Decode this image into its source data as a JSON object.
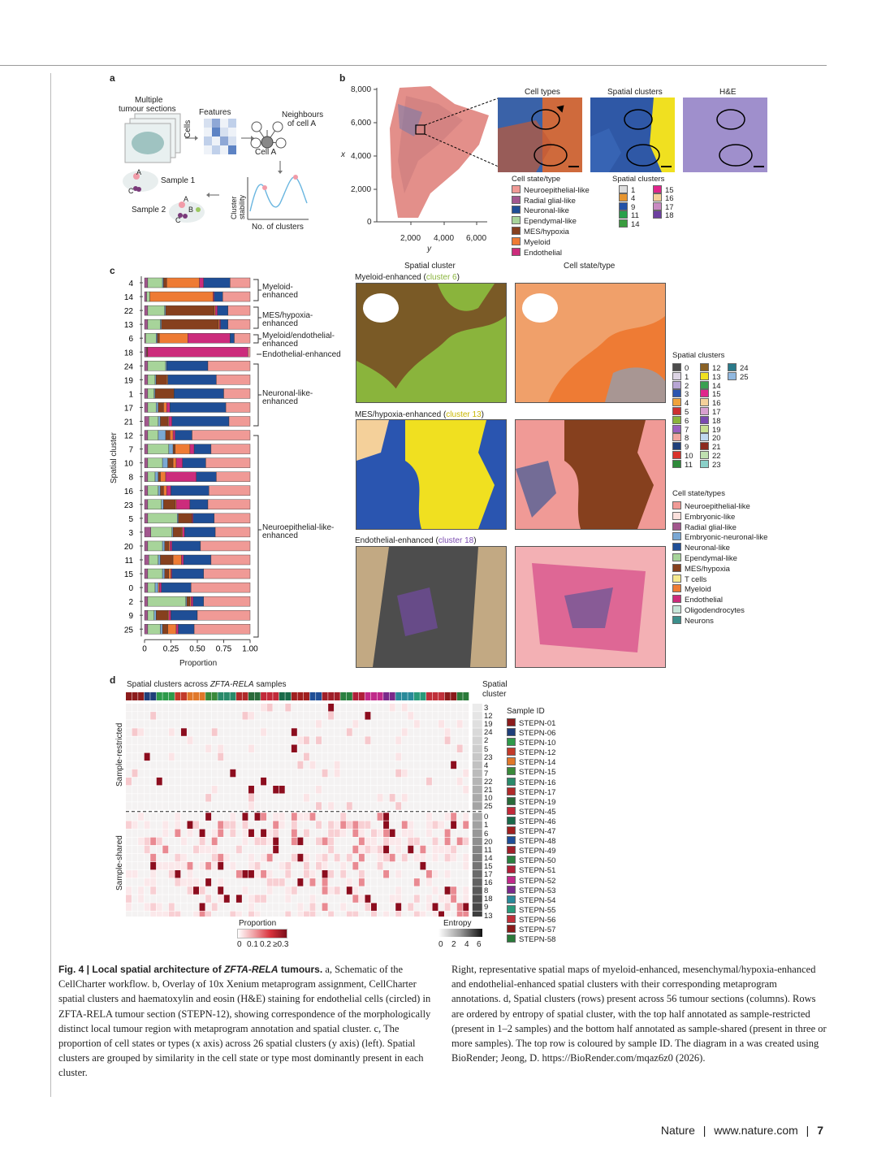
{
  "panel_labels": {
    "a": "a",
    "b": "b",
    "c": "c",
    "d": "d"
  },
  "panel_a": {
    "multiple": "Multiple",
    "tumour_sections": "tumour sections",
    "features": "Features",
    "cells": "Cells",
    "neighbours1": "Neighbours",
    "neighbours2": "of cell A",
    "cell_a": "Cell A",
    "sample1": "Sample 1",
    "sample2": "Sample 2",
    "cluster_stability": "Cluster stability",
    "no_clusters": "No. of clusters",
    "pt_a": "A",
    "pt_b": "B",
    "pt_c": "C"
  },
  "panel_b": {
    "x_label": "x",
    "y_label": "y",
    "y_ticks": [
      "8,000",
      "6,000",
      "4,000",
      "2,000",
      "0"
    ],
    "x_ticks": [
      "2,000",
      "4,000",
      "6,000"
    ],
    "inset_titles": [
      "Cell types",
      "Spatial clusters",
      "H&E"
    ],
    "cell_state_title": "Cell state/type",
    "cell_states": [
      "Neuroepithelial-like",
      "Radial glial-like",
      "Neuronal-like",
      "Ependymal-like",
      "MES/hypoxia",
      "Myeloid",
      "Endothelial"
    ],
    "cell_state_colors": [
      "#f09a96",
      "#a2578e",
      "#1f4e96",
      "#a7d49a",
      "#86401e",
      "#ee7b34",
      "#cc2c7c"
    ],
    "spatial_title": "Spatial clusters",
    "spatial_items": [
      "1",
      "4",
      "9",
      "11",
      "14",
      "15",
      "16",
      "17",
      "18"
    ],
    "spatial_colors": [
      "#dddddd",
      "#e7952f",
      "#2352a8",
      "#2aa04a",
      "#3a9d3f",
      "#e0258c",
      "#f4d09a",
      "#c98ac2",
      "#6d3fa0"
    ]
  },
  "panel_c": {
    "y_axis_label": "Spatial cluster",
    "x_axis_label": "Proportion",
    "x_ticks": [
      "0",
      "0.25",
      "0.50",
      "0.75",
      "1.00"
    ],
    "groups": [
      {
        "label1": "Myeloid-",
        "label2": "enhanced"
      },
      {
        "label1": "MES/hypoxia-",
        "label2": "enhanced"
      },
      {
        "label1": "Myeloid/endothelial-",
        "label2": "enhanced"
      },
      {
        "label1": "Endothelial-enhanced",
        "label2": ""
      },
      {
        "label1": "Neuronal-like-",
        "label2": "enhanced"
      },
      {
        "label1": "Neuroepithelial-like-",
        "label2": "enhanced"
      }
    ],
    "map_headers": [
      "Spatial cluster",
      "Cell state/type"
    ],
    "map_titles": [
      {
        "prefix": "Myeloid-enhanced (",
        "cluster": "cluster 6",
        "suffix": ")",
        "color": "#8ab43c"
      },
      {
        "prefix": "MES/hypoxia-enhanced (",
        "cluster": "cluster 13",
        "suffix": ")",
        "color": "#c9b600"
      },
      {
        "prefix": "Endothelial-enhanced (",
        "cluster": "cluster 18",
        "suffix": ")",
        "color": "#7a4bb0"
      }
    ],
    "spatial_legend_title": "Spatial clusters",
    "spatial_legend": [
      {
        "n": "0",
        "c": "#4d4d4d"
      },
      {
        "n": "1",
        "c": "#dcd4e4"
      },
      {
        "n": "2",
        "c": "#b8a6d4"
      },
      {
        "n": "3",
        "c": "#2a55b0"
      },
      {
        "n": "4",
        "c": "#f0a23a"
      },
      {
        "n": "5",
        "c": "#cc3030"
      },
      {
        "n": "6",
        "c": "#8ab43c"
      },
      {
        "n": "7",
        "c": "#9a5fc0"
      },
      {
        "n": "8",
        "c": "#f0a6a0"
      },
      {
        "n": "9",
        "c": "#1f3f7a"
      },
      {
        "n": "10",
        "c": "#d8322a"
      },
      {
        "n": "11",
        "c": "#2e8a3a"
      },
      {
        "n": "12",
        "c": "#8a6226"
      },
      {
        "n": "13",
        "c": "#f0e020"
      },
      {
        "n": "14",
        "c": "#3aa050"
      },
      {
        "n": "15",
        "c": "#e0258c"
      },
      {
        "n": "16",
        "c": "#f4d09a"
      },
      {
        "n": "17",
        "c": "#d8a0d0"
      },
      {
        "n": "18",
        "c": "#7a4bb0"
      },
      {
        "n": "19",
        "c": "#c8e090"
      },
      {
        "n": "20",
        "c": "#c0d8f0"
      },
      {
        "n": "21",
        "c": "#8c2a20"
      },
      {
        "n": "22",
        "c": "#bfe0b0"
      },
      {
        "n": "23",
        "c": "#8ad0c8"
      },
      {
        "n": "24",
        "c": "#2a7a8a"
      },
      {
        "n": "25",
        "c": "#90b8e0"
      }
    ],
    "cell_legend_title": "Cell state/types",
    "cell_legend": [
      {
        "n": "Neuroepithelial-like",
        "c": "#f09a96"
      },
      {
        "n": "Embryonic-like",
        "c": "#fbe0dc"
      },
      {
        "n": "Radial glial-like",
        "c": "#a2578e"
      },
      {
        "n": "Embryonic-neuronal-like",
        "c": "#7aa8d4"
      },
      {
        "n": "Neuronal-like",
        "c": "#1f4e96"
      },
      {
        "n": "Ependymal-like",
        "c": "#a7d49a"
      },
      {
        "n": "MES/hypoxia",
        "c": "#86401e"
      },
      {
        "n": "T cells",
        "c": "#f6ea90"
      },
      {
        "n": "Myeloid",
        "c": "#ee7b34"
      },
      {
        "n": "Endothelial",
        "c": "#cc2c7c"
      },
      {
        "n": "Oligodendrocytes",
        "c": "#c7e6d9"
      },
      {
        "n": "Neurons",
        "c": "#3c8f8c"
      }
    ]
  },
  "chart_data": {
    "type": "bar",
    "orientation": "horizontal-stacked",
    "title": "",
    "xlabel": "Proportion",
    "ylabel": "Spatial cluster",
    "xlim": [
      0,
      1
    ],
    "categories": [
      "4",
      "14",
      "22",
      "13",
      "6",
      "18",
      "24",
      "19",
      "1",
      "17",
      "21",
      "12",
      "7",
      "10",
      "8",
      "16",
      "23",
      "5",
      "3",
      "20",
      "11",
      "15",
      "0",
      "2",
      "9",
      "25"
    ],
    "series": [
      {
        "name": "Radial glial-like",
        "color": "#a2578e",
        "values": [
          0.03,
          0.02,
          0.03,
          0.03,
          0.01,
          0.02,
          0.03,
          0.03,
          0.03,
          0.03,
          0.04,
          0.03,
          0.03,
          0.03,
          0.03,
          0.03,
          0.03,
          0.03,
          0.06,
          0.03,
          0.04,
          0.03,
          0.03,
          0.03,
          0.03,
          0.03
        ]
      },
      {
        "name": "Ependymal-like",
        "color": "#a7d49a",
        "values": [
          0.14,
          0.03,
          0.16,
          0.12,
          0.1,
          0.0,
          0.17,
          0.07,
          0.06,
          0.08,
          0.09,
          0.1,
          0.2,
          0.14,
          0.07,
          0.1,
          0.13,
          0.28,
          0.2,
          0.14,
          0.09,
          0.14,
          0.07,
          0.36,
          0.06,
          0.12
        ]
      },
      {
        "name": "Embryonic-neuronal-like",
        "color": "#7aa8d4",
        "values": [
          0.01,
          0.0,
          0.01,
          0.01,
          0.01,
          0.0,
          0.01,
          0.01,
          0.01,
          0.02,
          0.02,
          0.07,
          0.04,
          0.05,
          0.03,
          0.02,
          0.02,
          0.01,
          0.01,
          0.02,
          0.02,
          0.02,
          0.03,
          0.01,
          0.02,
          0.02
        ]
      },
      {
        "name": "MES/hypoxia",
        "color": "#86401e",
        "values": [
          0.03,
          0.0,
          0.46,
          0.54,
          0.02,
          0.01,
          0.0,
          0.1,
          0.18,
          0.05,
          0.07,
          0.04,
          0.02,
          0.05,
          0.02,
          0.03,
          0.11,
          0.13,
          0.08,
          0.04,
          0.12,
          0.04,
          0.0,
          0.03,
          0.11,
          0.05
        ]
      },
      {
        "name": "Myeloid",
        "color": "#ee7b34",
        "values": [
          0.31,
          0.6,
          0.01,
          0.01,
          0.27,
          0.0,
          0.0,
          0.01,
          0.0,
          0.03,
          0.01,
          0.03,
          0.14,
          0.03,
          0.05,
          0.03,
          0.01,
          0.0,
          0.01,
          0.01,
          0.08,
          0.02,
          0.01,
          0.01,
          0.01,
          0.08
        ]
      },
      {
        "name": "Endothelial",
        "color": "#cc2c7c",
        "values": [
          0.04,
          0.01,
          0.02,
          0.01,
          0.4,
          0.95,
          0.0,
          0.0,
          0.0,
          0.03,
          0.03,
          0.02,
          0.04,
          0.06,
          0.29,
          0.04,
          0.13,
          0.01,
          0.02,
          0.02,
          0.02,
          0.01,
          0.02,
          0.02,
          0.02,
          0.02
        ]
      },
      {
        "name": "Neuronal-like",
        "color": "#1f4e96",
        "values": [
          0.25,
          0.08,
          0.1,
          0.07,
          0.04,
          0.0,
          0.39,
          0.46,
          0.47,
          0.53,
          0.54,
          0.16,
          0.16,
          0.22,
          0.19,
          0.36,
          0.17,
          0.2,
          0.29,
          0.27,
          0.26,
          0.3,
          0.28,
          0.1,
          0.25,
          0.15
        ]
      },
      {
        "name": "Neuroepithelial-like",
        "color": "#f09a96",
        "values": [
          0.19,
          0.26,
          0.21,
          0.21,
          0.15,
          0.02,
          0.4,
          0.32,
          0.25,
          0.23,
          0.2,
          0.55,
          0.37,
          0.42,
          0.32,
          0.39,
          0.4,
          0.34,
          0.33,
          0.47,
          0.37,
          0.44,
          0.56,
          0.44,
          0.5,
          0.53
        ]
      }
    ]
  },
  "panel_d": {
    "title_pre": "Spatial clusters across ",
    "title_em": "ZFTA-RELA",
    "title_post": " samples",
    "spatial_cluster_hdr1": "Spatial",
    "spatial_cluster_hdr2": "cluster",
    "restricted_label": "Sample-restricted",
    "shared_label": "Sample-shared",
    "restricted_clusters": [
      "3",
      "12",
      "19",
      "24",
      "2",
      "5",
      "23",
      "4",
      "7",
      "22",
      "21",
      "10",
      "25"
    ],
    "shared_clusters": [
      "0",
      "1",
      "6",
      "20",
      "11",
      "14",
      "15",
      "17",
      "16",
      "8",
      "18",
      "9",
      "13"
    ],
    "sample_id_title": "Sample ID",
    "samples": [
      {
        "id": "STEPN-01",
        "c": "#8c1c1c"
      },
      {
        "id": "STEPN-06",
        "c": "#1f3f7a"
      },
      {
        "id": "STEPN-10",
        "c": "#2e9a4a"
      },
      {
        "id": "STEPN-12",
        "c": "#c23a2a"
      },
      {
        "id": "STEPN-14",
        "c": "#e0782a"
      },
      {
        "id": "STEPN-15",
        "c": "#3a8a3a"
      },
      {
        "id": "STEPN-16",
        "c": "#2a8a6a"
      },
      {
        "id": "STEPN-17",
        "c": "#b02a2a"
      },
      {
        "id": "STEPN-19",
        "c": "#2a6a3a"
      },
      {
        "id": "STEPN-45",
        "c": "#c22a3a"
      },
      {
        "id": "STEPN-46",
        "c": "#1a6a4a"
      },
      {
        "id": "STEPN-47",
        "c": "#a02020"
      },
      {
        "id": "STEPN-48",
        "c": "#1f4e96"
      },
      {
        "id": "STEPN-49",
        "c": "#a0202a"
      },
      {
        "id": "STEPN-50",
        "c": "#2a8040"
      },
      {
        "id": "STEPN-51",
        "c": "#b0203a"
      },
      {
        "id": "STEPN-52",
        "c": "#c02a8a"
      },
      {
        "id": "STEPN-53",
        "c": "#7a2a8a"
      },
      {
        "id": "STEPN-54",
        "c": "#2a8a9a"
      },
      {
        "id": "STEPN-55",
        "c": "#2a9a7a"
      },
      {
        "id": "STEPN-56",
        "c": "#c0303a"
      },
      {
        "id": "STEPN-57",
        "c": "#8a1a1a"
      },
      {
        "id": "STEPN-58",
        "c": "#2a7a3a"
      }
    ],
    "proportion_label": "Proportion",
    "proportion_ticks": [
      "0",
      "0.1",
      "0.2",
      "≥0.3"
    ],
    "entropy_label": "Entropy",
    "entropy_ticks": [
      "0",
      "2",
      "4",
      "6"
    ]
  },
  "caption": {
    "fig": "Fig. 4 | Local spatial architecture of ",
    "fig_em": "ZFTA-RELA",
    "fig_end": " tumours.",
    "left": " a, Schematic of the CellCharter workflow. b, Overlay of 10x Xenium metaprogram assignment, CellCharter spatial clusters and haematoxylin and eosin (H&E) staining for endothelial cells (circled) in ZFTA-RELA tumour section (STEPN-12), showing correspondence of the morphologically distinct local tumour region with metaprogram annotation and spatial cluster. c, The proportion of cell states or types (x axis) across 26 spatial clusters (y axis) (left). Spatial clusters are grouped by similarity in the cell state or type most dominantly present in each cluster.",
    "right": "Right, representative spatial maps of myeloid-enhanced, mesenchymal/hypoxia-enhanced and endothelial-enhanced spatial clusters with their corresponding metaprogram annotations. d, Spatial clusters (rows) present across 56 tumour sections (columns). Rows are ordered by entropy of spatial cluster, with the top half annotated as sample-restricted (present in 1–2 samples) and the bottom half annotated as sample-shared (present in three or more samples). The top row is coloured by sample ID. The diagram in a was created using BioRender; Jeong, D. https://BioRender.com/mqaz6z0 (2026)."
  },
  "footer": {
    "journal": "Nature",
    "sep1": "|",
    "url": "www.nature.com",
    "sep2": "|",
    "page": "7"
  }
}
